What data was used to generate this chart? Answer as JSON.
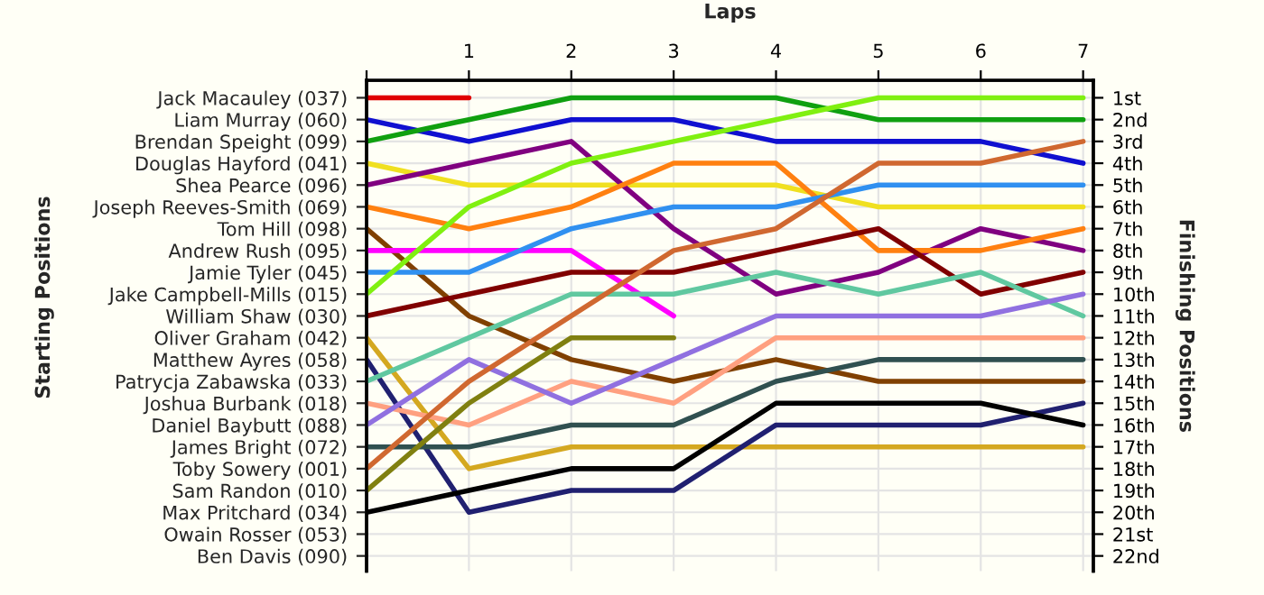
{
  "chart_data": {
    "type": "line",
    "xlabel": "Laps",
    "ylabel": "Finishing Positions",
    "annotations": [
      "Starting Positions"
    ],
    "x": [
      0,
      1,
      2,
      3,
      4,
      5,
      6,
      7
    ],
    "xlim": [
      0,
      7.1
    ],
    "xticks": [
      {
        "value": 0,
        "label": null
      },
      1,
      2,
      3,
      4,
      5,
      6,
      7
    ],
    "y_categories": [
      "Jack Macauley (037)",
      "Liam Murray (060)",
      "Brendan Speight (099)",
      "Douglas Hayford (041)",
      "Shea Pearce (096)",
      "Joseph Reeves-Smith (069)",
      "Tom Hill (098)",
      "Andrew Rush (095)",
      "Jamie Tyler (045)",
      "Jake Campbell-Mills (015)",
      "William Shaw (030)",
      "Oliver Graham (042)",
      "Matthew Ayres (058)",
      "Patrycja Zabawska (033)",
      "Joshua Burbank (018)",
      "Daniel Baybutt (088)",
      "James Bright (072)",
      "Toby Sowery (001)",
      "Sam Randon (010)",
      "Max Pritchard (034)",
      "Owain Rosser (053)",
      "Ben Davis (090)"
    ],
    "ylim": [
      22.7,
      0.2
    ],
    "yticks": [
      {
        "value": 1,
        "label": "1st"
      },
      {
        "value": 2,
        "label": "2nd"
      },
      {
        "value": 3,
        "label": "3rd"
      },
      {
        "value": 4,
        "label": "4th"
      },
      {
        "value": 5,
        "label": "5th"
      },
      {
        "value": 6,
        "label": "6th"
      },
      {
        "value": 7,
        "label": "7th"
      },
      {
        "value": 8,
        "label": "8th"
      },
      {
        "value": 9,
        "label": "9th"
      },
      {
        "value": 10,
        "label": "10th"
      },
      {
        "value": 11,
        "label": "11th"
      },
      {
        "value": 12,
        "label": "12th"
      },
      {
        "value": 13,
        "label": "13th"
      },
      {
        "value": 14,
        "label": "14th"
      },
      {
        "value": 15,
        "label": "15th"
      },
      {
        "value": 16,
        "label": "16th"
      },
      {
        "value": 17,
        "label": "17th"
      },
      {
        "value": 18,
        "label": "18th"
      },
      {
        "value": 19,
        "label": "19th"
      },
      {
        "value": 20,
        "label": "20th"
      },
      {
        "value": 21,
        "label": "21st"
      },
      {
        "value": 22,
        "label": "22nd"
      }
    ],
    "grid": true,
    "marker": "none",
    "line_style": "solid",
    "series": [
      {
        "color": "#e00000",
        "values": [
          1,
          1,
          null,
          null,
          null,
          null,
          null,
          null
        ]
      },
      {
        "color": "#1010d0",
        "values": [
          2,
          3,
          2,
          2,
          3,
          3,
          3,
          4
        ]
      },
      {
        "color": "#10a010",
        "values": [
          3,
          2,
          1,
          1,
          1,
          2,
          2,
          2
        ]
      },
      {
        "color": "#f0e020",
        "values": [
          4,
          5,
          5,
          5,
          5,
          6,
          6,
          6
        ]
      },
      {
        "color": "#800080",
        "values": [
          5,
          4,
          3,
          7,
          10,
          9,
          7,
          8
        ]
      },
      {
        "color": "#ff8010",
        "values": [
          6,
          7,
          6,
          4,
          4,
          8,
          8,
          7
        ]
      },
      {
        "color": "#804000",
        "values": [
          7,
          11,
          13,
          14,
          13,
          14,
          14,
          14
        ]
      },
      {
        "color": "#ff00ff",
        "values": [
          8,
          8,
          8,
          11,
          null,
          null,
          null,
          null
        ]
      },
      {
        "color": "#3090f0",
        "values": [
          9,
          9,
          7,
          6,
          6,
          5,
          5,
          5
        ]
      },
      {
        "color": "#80f010",
        "values": [
          10,
          6,
          4,
          3,
          2,
          1,
          1,
          1
        ]
      },
      {
        "color": "#800000",
        "values": [
          11,
          10,
          9,
          9,
          8,
          7,
          10,
          9
        ]
      },
      {
        "color": "#d4a820",
        "values": [
          12,
          18,
          17,
          17,
          17,
          17,
          17,
          17
        ]
      },
      {
        "color": "#202070",
        "values": [
          13,
          20,
          19,
          19,
          16,
          16,
          16,
          15
        ]
      },
      {
        "color": "#60c8a0",
        "values": [
          14,
          12,
          10,
          10,
          9,
          10,
          9,
          11
        ]
      },
      {
        "color": "#ffa080",
        "values": [
          15,
          16,
          14,
          15,
          12,
          12,
          12,
          12
        ]
      },
      {
        "color": "#9070e0",
        "values": [
          16,
          13,
          15,
          13,
          11,
          11,
          11,
          10
        ]
      },
      {
        "color": "#305050",
        "values": [
          17,
          17,
          16,
          16,
          14,
          13,
          13,
          13
        ]
      },
      {
        "color": "#d06830",
        "values": [
          18,
          14,
          11,
          8,
          7,
          4,
          4,
          3
        ]
      },
      {
        "color": "#808010",
        "values": [
          19,
          15,
          12,
          12,
          null,
          null,
          null,
          null
        ]
      },
      {
        "color": "#000000",
        "values": [
          20,
          19,
          18,
          18,
          15,
          15,
          15,
          16
        ]
      }
    ]
  }
}
